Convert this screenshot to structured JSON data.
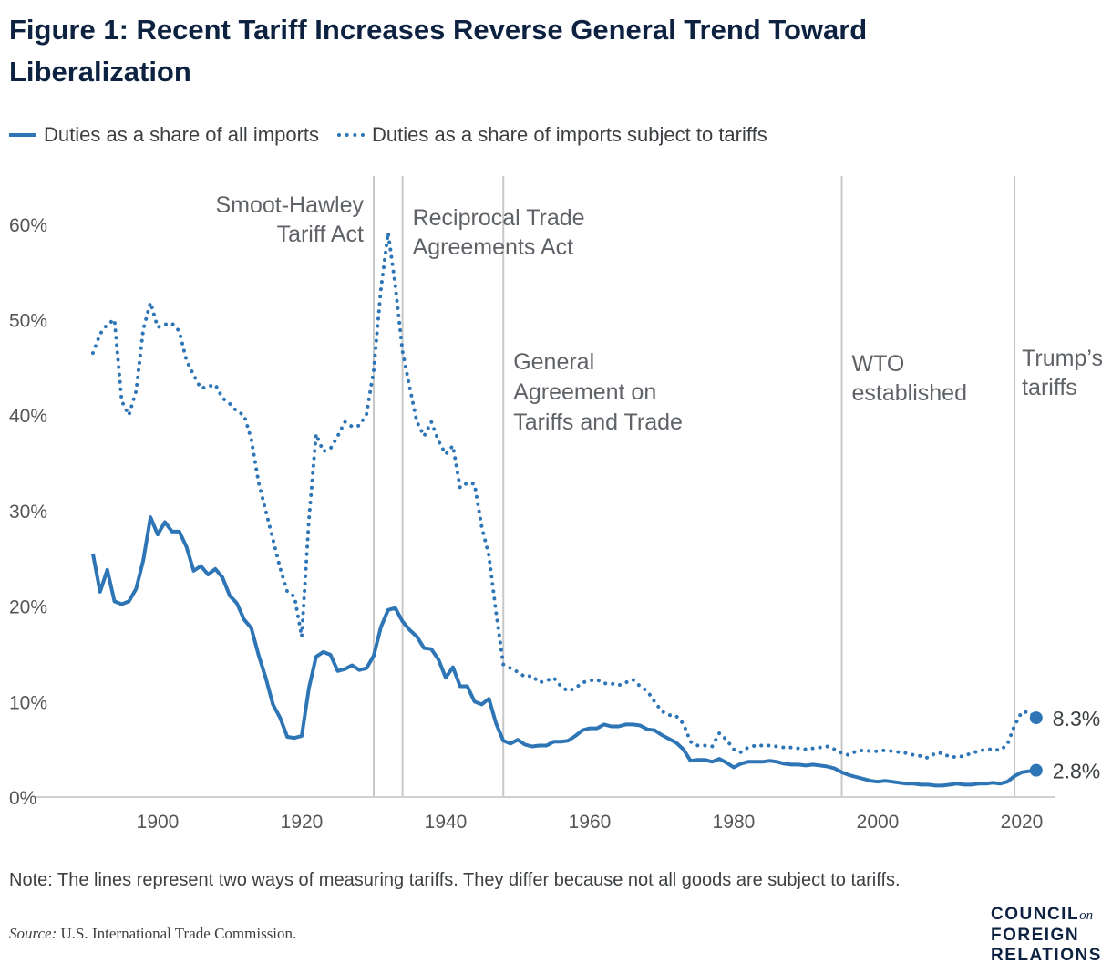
{
  "title": "Figure 1: Recent Tariff Increases Reverse General Trend Toward Liberalization",
  "note": "Note: The lines represent two ways of measuring tariffs. They differ because not all goods are subject to tariffs.",
  "source_label": "Source:",
  "source_text": "U.S. International Trade Commission.",
  "logo": {
    "line1": "COUNCIL",
    "on": "on",
    "line2": "FOREIGN",
    "line3": "RELATIONS"
  },
  "colors": {
    "series": "#2e75b6",
    "title": "#0d2240",
    "annotation_line": "#c8c8c8"
  },
  "chart_data": {
    "type": "line",
    "title": "Figure 1: Recent Tariff Increases Reverse General Trend Toward Liberalization",
    "xlabel": "",
    "ylabel": "",
    "xlim": [
      1889,
      2029
    ],
    "ylim": [
      0,
      60
    ],
    "x_ticks": [
      1900,
      1920,
      1940,
      1960,
      1980,
      2000,
      2020
    ],
    "y_ticks": [
      0,
      10,
      20,
      30,
      40,
      50,
      60
    ],
    "y_tick_labels": [
      "0%",
      "10%",
      "20%",
      "30%",
      "40%",
      "50%",
      "60%"
    ],
    "grid": false,
    "legend": "top-left",
    "x": [
      1891,
      1892,
      1893,
      1894,
      1895,
      1896,
      1897,
      1898,
      1899,
      1900,
      1901,
      1902,
      1903,
      1904,
      1905,
      1906,
      1907,
      1908,
      1909,
      1910,
      1911,
      1912,
      1913,
      1914,
      1915,
      1916,
      1917,
      1918,
      1919,
      1920,
      1921,
      1922,
      1923,
      1924,
      1925,
      1926,
      1927,
      1928,
      1929,
      1930,
      1931,
      1932,
      1933,
      1934,
      1935,
      1936,
      1937,
      1938,
      1939,
      1940,
      1941,
      1942,
      1943,
      1944,
      1945,
      1946,
      1947,
      1948,
      1949,
      1950,
      1951,
      1952,
      1953,
      1954,
      1955,
      1956,
      1957,
      1958,
      1959,
      1960,
      1961,
      1962,
      1963,
      1964,
      1965,
      1966,
      1967,
      1968,
      1969,
      1970,
      1971,
      1972,
      1973,
      1974,
      1975,
      1976,
      1977,
      1978,
      1979,
      1980,
      1981,
      1982,
      1983,
      1984,
      1985,
      1986,
      1987,
      1988,
      1989,
      1990,
      1991,
      1992,
      1993,
      1994,
      1995,
      1996,
      1997,
      1998,
      1999,
      2000,
      2001,
      2002,
      2003,
      2004,
      2005,
      2006,
      2007,
      2008,
      2009,
      2010,
      2011,
      2012,
      2013,
      2014,
      2015,
      2016,
      2017,
      2018,
      2019,
      2020,
      2021,
      2022
    ],
    "series": [
      {
        "name": "Duties as a share of all imports",
        "style": "solid",
        "end_label": "2.8%",
        "values": [
          25.5,
          21.5,
          23.8,
          20.5,
          20.2,
          20.5,
          21.8,
          24.8,
          29.3,
          27.5,
          28.8,
          27.8,
          27.8,
          26.2,
          23.7,
          24.2,
          23.3,
          23.9,
          23.0,
          21.1,
          20.3,
          18.6,
          17.7,
          14.9,
          12.5,
          9.7,
          8.3,
          6.3,
          6.2,
          6.4,
          11.4,
          14.7,
          15.2,
          14.9,
          13.2,
          13.4,
          13.8,
          13.3,
          13.5,
          14.8,
          17.8,
          19.6,
          19.8,
          18.4,
          17.5,
          16.8,
          15.6,
          15.5,
          14.4,
          12.5,
          13.6,
          11.6,
          11.6,
          10.0,
          9.7,
          10.3,
          7.7,
          5.9,
          5.6,
          6.0,
          5.5,
          5.3,
          5.4,
          5.4,
          5.8,
          5.8,
          5.9,
          6.4,
          7.0,
          7.2,
          7.2,
          7.6,
          7.4,
          7.4,
          7.6,
          7.6,
          7.5,
          7.1,
          7.0,
          6.5,
          6.1,
          5.7,
          5.0,
          3.8,
          3.9,
          3.9,
          3.7,
          4.0,
          3.6,
          3.1,
          3.5,
          3.7,
          3.7,
          3.7,
          3.8,
          3.7,
          3.5,
          3.4,
          3.4,
          3.3,
          3.4,
          3.3,
          3.2,
          3.0,
          2.6,
          2.3,
          2.1,
          1.9,
          1.7,
          1.6,
          1.7,
          1.6,
          1.5,
          1.4,
          1.4,
          1.3,
          1.3,
          1.2,
          1.2,
          1.3,
          1.4,
          1.3,
          1.3,
          1.4,
          1.4,
          1.5,
          1.4,
          1.6,
          2.2,
          2.6,
          2.7,
          2.8
        ]
      },
      {
        "name": "Duties as a share of imports subject to tariffs",
        "style": "dotted",
        "end_label": "8.3%",
        "values": [
          46.5,
          48.5,
          49.5,
          50.0,
          41.5,
          40.0,
          42.5,
          49.0,
          51.8,
          49.2,
          49.5,
          49.6,
          48.8,
          45.7,
          44.2,
          42.8,
          43.0,
          43.2,
          41.8,
          41.2,
          40.4,
          40.0,
          37.5,
          33.0,
          30.0,
          27.0,
          24.0,
          21.5,
          21.0,
          16.8,
          29.0,
          38.0,
          36.2,
          36.5,
          37.8,
          39.3,
          38.8,
          38.9,
          40.1,
          44.7,
          53.2,
          59.1,
          53.6,
          46.7,
          42.9,
          39.3,
          37.8,
          39.3,
          37.3,
          35.9,
          36.8,
          32.4,
          32.9,
          32.8,
          28.3,
          25.3,
          19.3,
          13.9,
          13.5,
          13.1,
          12.6,
          12.7,
          12.0,
          12.2,
          12.5,
          11.6,
          11.1,
          11.4,
          12.0,
          12.2,
          12.3,
          11.9,
          11.9,
          11.7,
          12.0,
          12.3,
          11.6,
          11.1,
          10.0,
          9.0,
          8.6,
          8.5,
          7.7,
          5.8,
          5.4,
          5.4,
          5.3,
          6.7,
          6.0,
          5.0,
          4.7,
          5.2,
          5.4,
          5.4,
          5.4,
          5.3,
          5.2,
          5.2,
          5.1,
          5.0,
          5.1,
          5.2,
          5.3,
          5.0,
          4.6,
          4.4,
          4.8,
          4.9,
          4.8,
          4.8,
          4.9,
          4.8,
          4.7,
          4.6,
          4.4,
          4.3,
          4.1,
          4.6,
          4.6,
          4.2,
          4.2,
          4.3,
          4.6,
          4.8,
          5.0,
          5.0,
          4.9,
          5.5,
          7.5,
          8.9,
          8.9,
          8.3
        ]
      }
    ],
    "annotations": [
      {
        "year": 1930,
        "lines": [
          "Smoot-Hawley",
          "Tariff Act"
        ],
        "align": "right"
      },
      {
        "year": 1934,
        "lines": [
          "Reciprocal Trade",
          "Agreements Act"
        ],
        "align": "left"
      },
      {
        "year": 1948,
        "lines": [
          "General",
          "Agreement on",
          "Tariffs and Trade"
        ],
        "align": "left"
      },
      {
        "year": 1995,
        "lines": [
          "WTO",
          "established"
        ],
        "align": "left"
      },
      {
        "year": 2019,
        "lines": [
          "Trump’s",
          "tariffs"
        ],
        "align": "left"
      }
    ]
  }
}
